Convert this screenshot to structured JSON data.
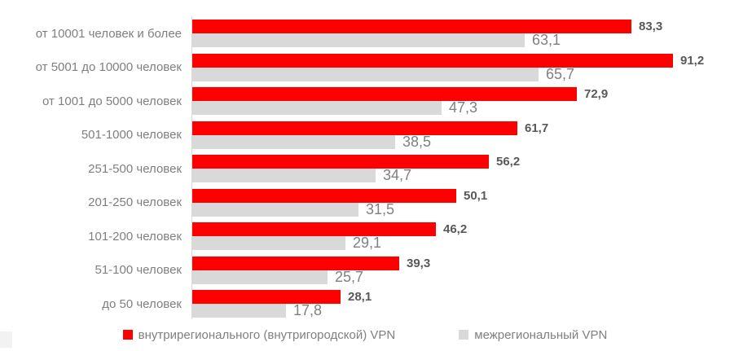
{
  "chart_data": {
    "type": "bar",
    "orientation": "horizontal",
    "title": "",
    "xlabel": "",
    "ylabel": "",
    "xlim": [
      0,
      100
    ],
    "grid": false,
    "legend_position": "bottom",
    "value_label_decimal_separator": ",",
    "categories": [
      "от 10001 человек и более",
      "от 5001 до 10000 человек",
      "от 1001 до 5000 человек",
      "501-1000 человек",
      "251-500 человек",
      "201-250 человек",
      "101-200 человек",
      "51-100 человек",
      "до 50 человек"
    ],
    "series": [
      {
        "name": "внутрирегионального (внутригородской) VPN",
        "color": "#ff0000",
        "values": [
          83.3,
          91.2,
          72.9,
          61.7,
          56.2,
          50.1,
          46.2,
          39.3,
          28.1
        ]
      },
      {
        "name": "межрегиональный VPN",
        "color": "#d9d9d9",
        "values": [
          63.1,
          65.7,
          47.3,
          38.5,
          34.7,
          31.5,
          29.1,
          25.7,
          17.8
        ]
      }
    ]
  },
  "legend": {
    "items": [
      {
        "label": "внутрирегионального (внутригородской) VPN",
        "color": "#ff0000"
      },
      {
        "label": "межрегиональный VPN",
        "color": "#d9d9d9"
      }
    ]
  },
  "style": {
    "axis_line_color": "#d9d9d9",
    "category_label_color": "#7f7f7f",
    "series0_value_color": "#595959",
    "series1_value_color": "#808080"
  }
}
